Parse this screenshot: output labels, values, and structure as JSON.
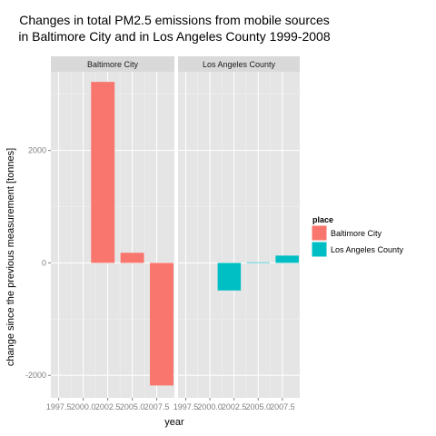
{
  "chart_data": {
    "type": "bar",
    "title_lines": [
      "Changes in total PM2.5 emissions from mobile sources",
      "in Baltimore City and in Los Angeles County 1999-2008"
    ],
    "xlabel": "year",
    "ylabel": "change since the previous measurement [tonnes]",
    "xlim": [
      1996.7,
      2009.3
    ],
    "ylim": [
      -2400,
      3400
    ],
    "x_ticks": [
      1997.5,
      2000.0,
      2002.5,
      2005.0,
      2007.5
    ],
    "x_tick_labels": [
      "1997.5",
      "2000.0",
      "2002.5",
      "2005.0",
      "2007.5"
    ],
    "y_ticks": [
      -2000,
      0,
      2000
    ],
    "y_tick_labels": [
      "-2000",
      "0",
      "2000"
    ],
    "bar_width": 2.4,
    "grid": true,
    "legend_position": "right",
    "legend_title": "place",
    "panels": [
      {
        "name": "Baltimore City",
        "color": "#f8766d",
        "x": [
          2002,
          2005,
          2008
        ],
        "values": [
          3220,
          180,
          -2180
        ]
      },
      {
        "name": "Los Angeles County",
        "color": "#00bfc4",
        "x": [
          2002,
          2005,
          2008
        ],
        "values": [
          -490,
          10,
          130
        ]
      }
    ],
    "legend": [
      {
        "label": "Baltimore City",
        "color": "#f8766d"
      },
      {
        "label": "Los Angeles County",
        "color": "#00bfc4"
      }
    ]
  }
}
